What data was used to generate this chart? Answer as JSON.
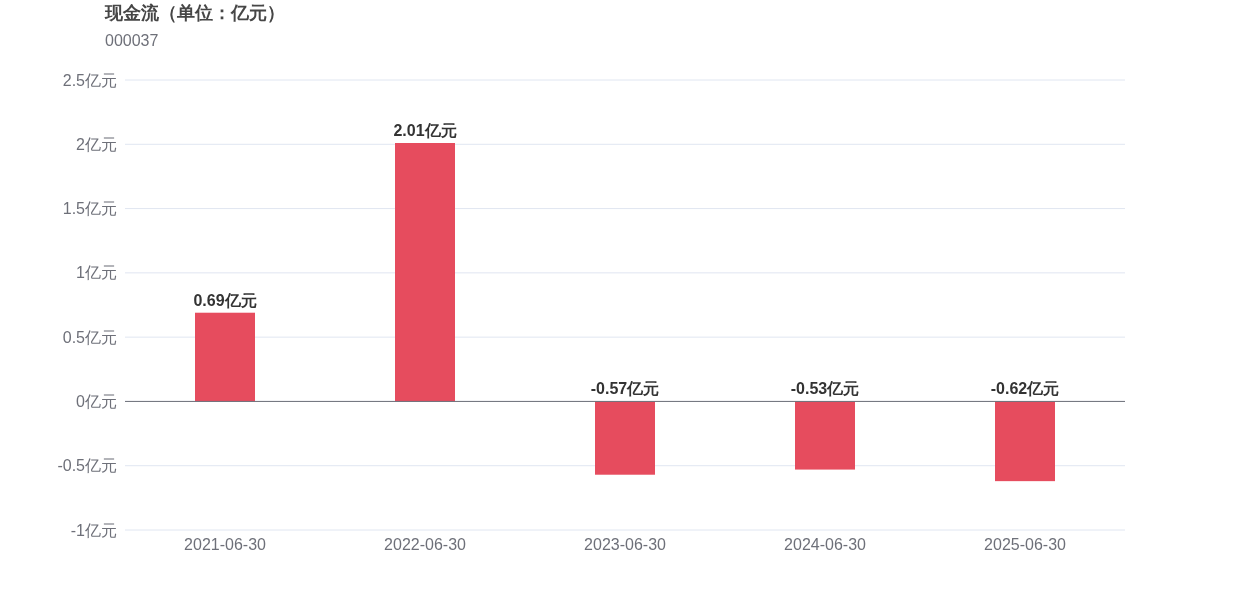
{
  "chart_data": {
    "type": "bar",
    "title": "现金流（单位：亿元）",
    "subtitle": "000037",
    "categories": [
      "2021-06-30",
      "2022-06-30",
      "2023-06-30",
      "2024-06-30",
      "2025-06-30"
    ],
    "values": [
      0.69,
      2.01,
      -0.57,
      -0.53,
      -0.62
    ],
    "value_labels": [
      "0.69亿元",
      "2.01亿元",
      "-0.57亿元",
      "-0.53亿元",
      "-0.62亿元"
    ],
    "color": "#e64c5e",
    "ylim": [
      -1,
      2.5
    ],
    "yticks": [
      {
        "value": -1,
        "label": "-1亿元"
      },
      {
        "value": -0.5,
        "label": "-0.5亿元"
      },
      {
        "value": 0,
        "label": "0亿元"
      },
      {
        "value": 0.5,
        "label": "0.5亿元"
      },
      {
        "value": 1,
        "label": "1亿元"
      },
      {
        "value": 1.5,
        "label": "1.5亿元"
      },
      {
        "value": 2,
        "label": "2亿元"
      },
      {
        "value": 2.5,
        "label": "2.5亿元"
      }
    ],
    "grid": "y"
  }
}
